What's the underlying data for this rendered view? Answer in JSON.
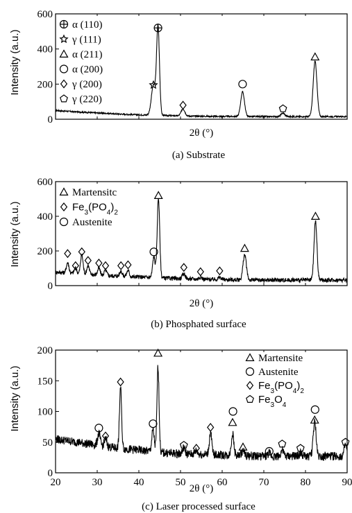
{
  "chart_data": [
    {
      "type": "line",
      "caption": "(a) Substrate",
      "xlabel": "2θ (°)",
      "ylabel": "Intensity (a.u.)",
      "xlim": [
        20,
        90
      ],
      "ylim": [
        0,
        600
      ],
      "yticks": [
        0,
        200,
        400,
        600
      ],
      "x_tick_labels_shown": false,
      "legend": {
        "placement": "top-left",
        "entries": [
          {
            "marker": "circle-cross",
            "text": "α (110)"
          },
          {
            "marker": "star",
            "text": "γ (111)"
          },
          {
            "marker": "triangle",
            "text": "α (211)"
          },
          {
            "marker": "circle",
            "text": "α (200)"
          },
          {
            "marker": "diamond",
            "text": "γ (200)"
          },
          {
            "marker": "pentagon",
            "text": "γ (220)"
          }
        ]
      },
      "baseline": [
        [
          20,
          50
        ],
        [
          25,
          42
        ],
        [
          30,
          36
        ],
        [
          35,
          30
        ],
        [
          40,
          25
        ],
        [
          45,
          22
        ],
        [
          50,
          19
        ],
        [
          55,
          17
        ],
        [
          60,
          16
        ],
        [
          65,
          16
        ],
        [
          70,
          15
        ],
        [
          75,
          15
        ],
        [
          80,
          15
        ],
        [
          85,
          15
        ],
        [
          90,
          15
        ]
      ],
      "peaks": [
        {
          "x": 43.5,
          "height": 170,
          "width": 0.5,
          "marker": "star",
          "label_y": 195
        },
        {
          "x": 44.6,
          "height": 500,
          "width": 0.35,
          "marker": "circle-cross",
          "label_y": 520
        },
        {
          "x": 50.6,
          "height": 40,
          "width": 0.45,
          "marker": "diamond",
          "label_y": 80
        },
        {
          "x": 64.9,
          "height": 140,
          "width": 0.45,
          "marker": "circle",
          "label_y": 200
        },
        {
          "x": 74.6,
          "height": 20,
          "width": 0.45,
          "marker": "pentagon",
          "label_y": 60
        },
        {
          "x": 82.3,
          "height": 315,
          "width": 0.45,
          "marker": "triangle",
          "label_y": 355
        }
      ],
      "noise": 4
    },
    {
      "type": "line",
      "caption": "(b) Phosphated  surface",
      "xlabel": "2θ (°)",
      "ylabel": "Intensity (a.u.)",
      "xlim": [
        20,
        90
      ],
      "ylim": [
        0,
        600
      ],
      "yticks": [
        0,
        200,
        400,
        600
      ],
      "x_tick_labels_shown": false,
      "legend": {
        "placement": "top-left",
        "entries": [
          {
            "marker": "triangle",
            "text": "Martensitc"
          },
          {
            "marker": "diamond",
            "text": "Fe3(PO4)2",
            "parts": [
              "Fe",
              "3",
              "(PO",
              "4",
              ")",
              "2"
            ]
          },
          {
            "marker": "circle",
            "text": "Austenite"
          }
        ]
      },
      "baseline": [
        [
          20,
          78
        ],
        [
          25,
          70
        ],
        [
          30,
          62
        ],
        [
          35,
          55
        ],
        [
          40,
          50
        ],
        [
          45,
          45
        ],
        [
          50,
          40
        ],
        [
          55,
          37
        ],
        [
          60,
          35
        ],
        [
          65,
          33
        ],
        [
          70,
          32
        ],
        [
          75,
          32
        ],
        [
          80,
          32
        ],
        [
          85,
          32
        ],
        [
          90,
          32
        ]
      ],
      "peaks": [
        {
          "x": 22.9,
          "height": 60,
          "width": 0.3,
          "marker": "diamond",
          "label_y": 185
        },
        {
          "x": 24.8,
          "height": 30,
          "width": 0.3,
          "marker": "diamond",
          "label_y": 115
        },
        {
          "x": 26.3,
          "height": 110,
          "width": 0.3,
          "marker": "diamond",
          "label_y": 195
        },
        {
          "x": 27.8,
          "height": 50,
          "width": 0.3,
          "marker": "diamond",
          "label_y": 145
        },
        {
          "x": 30.4,
          "height": 40,
          "width": 0.3,
          "marker": "diamond",
          "label_y": 130
        },
        {
          "x": 32.0,
          "height": 30,
          "width": 0.3,
          "marker": "diamond",
          "label_y": 115
        },
        {
          "x": 35.7,
          "height": 30,
          "width": 0.3,
          "marker": "diamond",
          "label_y": 115
        },
        {
          "x": 37.4,
          "height": 35,
          "width": 0.3,
          "marker": "diamond",
          "label_y": 120
        },
        {
          "x": 43.6,
          "height": 120,
          "width": 0.3,
          "marker": "circle",
          "label_y": 195
        },
        {
          "x": 44.7,
          "height": 460,
          "width": 0.3,
          "marker": "triangle",
          "label_y": 520
        },
        {
          "x": 50.8,
          "height": 30,
          "width": 0.35,
          "marker": "diamond",
          "label_y": 105
        },
        {
          "x": 54.8,
          "height": 12,
          "width": 0.35,
          "marker": "diamond",
          "label_y": 80
        },
        {
          "x": 59.4,
          "height": 12,
          "width": 0.35,
          "marker": "diamond",
          "label_y": 85
        },
        {
          "x": 65.4,
          "height": 145,
          "width": 0.4,
          "marker": "triangle",
          "label_y": 215
        },
        {
          "x": 82.4,
          "height": 340,
          "width": 0.35,
          "marker": "triangle",
          "label_y": 400
        }
      ],
      "noise": 12
    },
    {
      "type": "line",
      "caption": "(c) Laser processed surface",
      "xlabel": "2θ (°)",
      "ylabel": "Intensity (a.u.)",
      "xlim": [
        20,
        90
      ],
      "ylim": [
        0,
        200
      ],
      "yticks": [
        0,
        50,
        100,
        150,
        200
      ],
      "xticks": [
        20,
        30,
        40,
        50,
        60,
        70,
        80,
        90
      ],
      "x_tick_labels_shown": true,
      "legend": {
        "placement": "top-right",
        "entries": [
          {
            "marker": "triangle",
            "text": "Martensite"
          },
          {
            "marker": "circle",
            "text": "Austenite"
          },
          {
            "marker": "diamond",
            "text": "Fe3(PO4)2",
            "parts": [
              "Fe",
              "3",
              "(PO",
              "4",
              ")",
              "2"
            ]
          },
          {
            "marker": "pentagon",
            "text": "Fe3O4",
            "parts": [
              "Fe",
              "3",
              "O",
              "4"
            ]
          }
        ]
      },
      "baseline": [
        [
          20,
          55
        ],
        [
          25,
          50
        ],
        [
          30,
          45
        ],
        [
          35,
          40
        ],
        [
          40,
          37
        ],
        [
          45,
          33
        ],
        [
          50,
          31
        ],
        [
          55,
          30
        ],
        [
          60,
          29
        ],
        [
          65,
          28
        ],
        [
          70,
          27
        ],
        [
          75,
          27
        ],
        [
          80,
          27
        ],
        [
          85,
          27
        ],
        [
          90,
          27
        ]
      ],
      "peaks": [
        {
          "x": 30.4,
          "height": 20,
          "width": 0.3,
          "marker": "circle",
          "label_y": 73
        },
        {
          "x": 32.0,
          "height": 12,
          "width": 0.3,
          "marker": "diamond",
          "label_y": 60
        },
        {
          "x": 35.6,
          "height": 100,
          "width": 0.25,
          "marker": "diamond",
          "label_y": 148
        },
        {
          "x": 43.4,
          "height": 35,
          "width": 0.3,
          "marker": "circle",
          "label_y": 80
        },
        {
          "x": 44.6,
          "height": 140,
          "width": 0.25,
          "marker": "triangle",
          "label_y": 195
        },
        {
          "x": 50.8,
          "height": 10,
          "width": 0.3,
          "marker": "pentagon",
          "label_y": 45
        },
        {
          "x": 53.8,
          "height": 6,
          "width": 0.3,
          "marker": "diamond",
          "label_y": 40
        },
        {
          "x": 57.2,
          "height": 35,
          "width": 0.3,
          "marker": "diamond",
          "label_y": 74
        },
        {
          "x": 62.5,
          "height": 35,
          "width": 0.3,
          "marker": "triangle",
          "label_y": 82
        },
        {
          "x": 62.6,
          "height": 0,
          "width": 0.3,
          "marker": "circle",
          "label_y": 100
        },
        {
          "x": 65.0,
          "height": 8,
          "width": 0.3,
          "marker": "triangle",
          "label_y": 42
        },
        {
          "x": 71.3,
          "height": 5,
          "width": 0.3,
          "marker": "circle",
          "label_y": 35
        },
        {
          "x": 74.4,
          "height": 10,
          "width": 0.3,
          "marker": "pentagon",
          "label_y": 47
        },
        {
          "x": 78.8,
          "height": 5,
          "width": 0.3,
          "marker": "pentagon",
          "label_y": 40
        },
        {
          "x": 82.2,
          "height": 55,
          "width": 0.35,
          "marker": "triangle",
          "label_y": 86
        },
        {
          "x": 82.3,
          "height": 0,
          "width": 0.35,
          "marker": "circle",
          "label_y": 103
        },
        {
          "x": 89.6,
          "height": 18,
          "width": 0.3,
          "marker": "pentagon",
          "label_y": 50
        }
      ],
      "noise": 7
    }
  ]
}
